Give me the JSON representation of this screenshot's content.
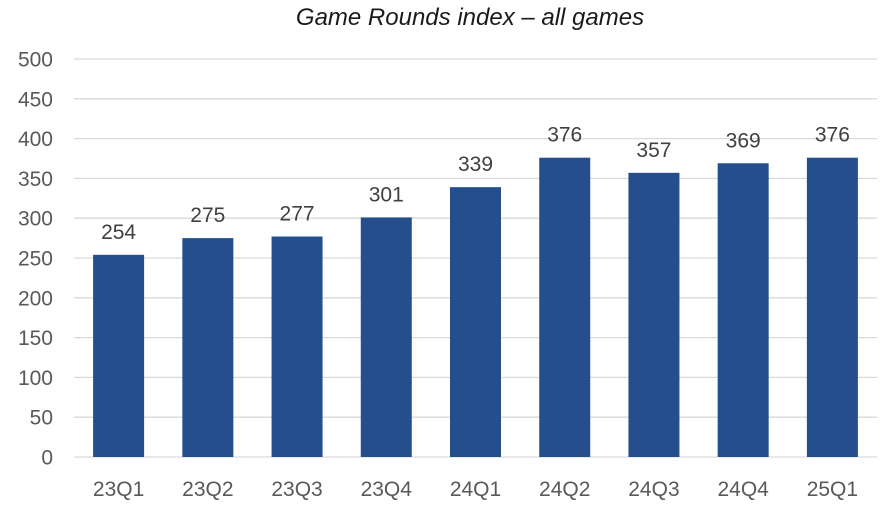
{
  "chart_data": {
    "type": "bar",
    "title": "Game Rounds index – all games",
    "xlabel": "",
    "ylabel": "",
    "categories": [
      "23Q1",
      "23Q2",
      "23Q3",
      "23Q4",
      "24Q1",
      "24Q2",
      "24Q3",
      "24Q4",
      "25Q1"
    ],
    "values": [
      254,
      275,
      277,
      301,
      339,
      376,
      357,
      369,
      376
    ],
    "data_labels": [
      "254",
      "275",
      "277",
      "301",
      "339",
      "376",
      "357",
      "369",
      "376"
    ],
    "ylim": [
      0,
      500
    ],
    "yticks": [
      0,
      50,
      100,
      150,
      200,
      250,
      300,
      350,
      400,
      450,
      500
    ],
    "ytick_labels": [
      "0",
      "50",
      "100",
      "150",
      "200",
      "250",
      "300",
      "350",
      "400",
      "450",
      "500"
    ],
    "grid": true,
    "legend": "none",
    "bar_color": "#244f8c",
    "grid_color": "#d9d9d9"
  }
}
